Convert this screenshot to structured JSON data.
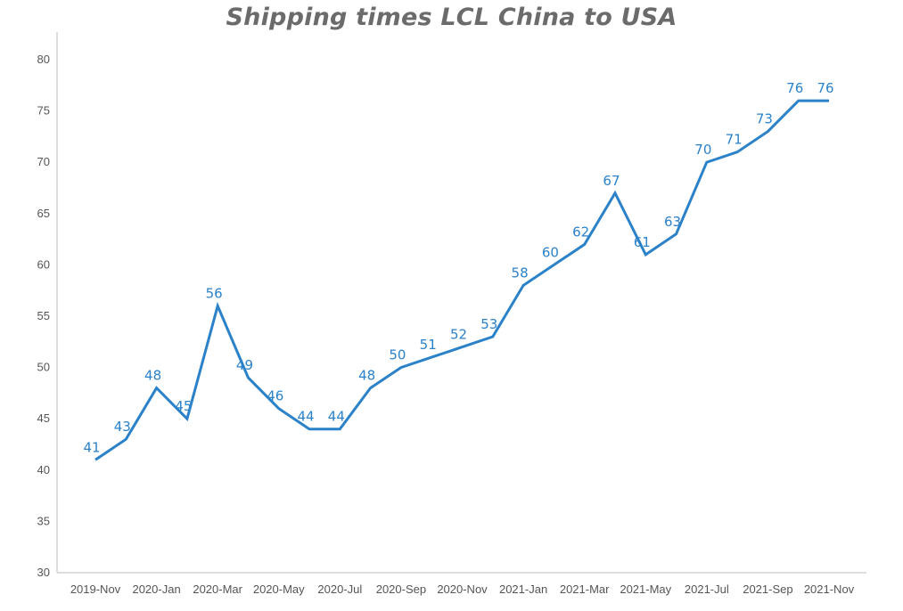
{
  "chart_data": {
    "type": "line",
    "title": "Shipping times LCL China to USA",
    "xlabel": "",
    "ylabel": "",
    "ylim": [
      30,
      80
    ],
    "yticks": [
      30,
      35,
      40,
      45,
      50,
      55,
      60,
      65,
      70,
      75,
      80
    ],
    "x": [
      "2019-Nov",
      "2019-Dec",
      "2020-Jan",
      "2020-Feb",
      "2020-Mar",
      "2020-Apr",
      "2020-May",
      "2020-Jun",
      "2020-Jul",
      "2020-Aug",
      "2020-Sep",
      "2020-Oct",
      "2020-Nov",
      "2020-Dec",
      "2021-Jan",
      "2021-Feb",
      "2021-Mar",
      "2021-Apr",
      "2021-May",
      "2021-Jun",
      "2021-Jul",
      "2021-Aug",
      "2021-Sep",
      "2021-Oct",
      "2021-Nov"
    ],
    "xtick_labels": [
      "2019-Nov",
      "2020-Jan",
      "2020-Mar",
      "2020-May",
      "2020-Jul",
      "2020-Sep",
      "2020-Nov",
      "2021-Jan",
      "2021-Mar",
      "2021-May",
      "2021-Jul",
      "2021-Sep",
      "2021-Nov"
    ],
    "series": [
      {
        "values": [
          41,
          43,
          48,
          45,
          56,
          49,
          46,
          44,
          44,
          48,
          50,
          51,
          52,
          53,
          58,
          60,
          62,
          67,
          61,
          63,
          70,
          71,
          73,
          76,
          76
        ],
        "color": "#2b82c9"
      }
    ],
    "grid": false,
    "legend": "none"
  }
}
